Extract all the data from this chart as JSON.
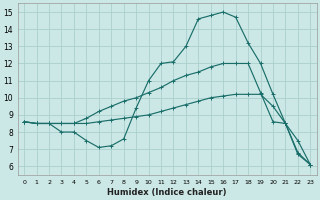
{
  "xlabel": "Humidex (Indice chaleur)",
  "bg_color": "#cce8e6",
  "grid_color": "#aacfcc",
  "line_color": "#1a6e6a",
  "xlim": [
    -0.5,
    23.5
  ],
  "ylim": [
    5.5,
    15.5
  ],
  "xticks": [
    0,
    1,
    2,
    3,
    4,
    5,
    6,
    7,
    8,
    9,
    10,
    11,
    12,
    13,
    14,
    15,
    16,
    17,
    18,
    19,
    20,
    21,
    22,
    23
  ],
  "yticks": [
    6,
    7,
    8,
    9,
    10,
    11,
    12,
    13,
    14,
    15
  ],
  "line1_x": [
    0,
    1,
    2,
    3,
    4,
    5,
    6,
    7,
    8,
    9,
    10,
    11,
    12,
    13,
    14,
    15,
    16,
    17,
    18,
    19,
    20,
    21,
    22,
    23
  ],
  "line1_y": [
    8.6,
    8.5,
    8.5,
    8.0,
    8.0,
    7.5,
    7.1,
    7.2,
    7.6,
    9.4,
    11.0,
    12.0,
    12.1,
    13.0,
    14.6,
    14.8,
    15.0,
    14.7,
    13.2,
    12.0,
    10.2,
    8.5,
    6.7,
    6.1
  ],
  "line2_x": [
    0,
    1,
    2,
    3,
    4,
    5,
    6,
    7,
    8,
    9,
    10,
    11,
    12,
    13,
    14,
    15,
    16,
    17,
    18,
    19,
    20,
    21,
    22,
    23
  ],
  "line2_y": [
    8.6,
    8.5,
    8.5,
    8.5,
    8.5,
    8.8,
    9.2,
    9.5,
    9.8,
    10.0,
    10.3,
    10.6,
    11.0,
    11.3,
    11.5,
    11.8,
    12.0,
    12.0,
    12.0,
    10.3,
    8.6,
    8.5,
    7.5,
    6.1
  ],
  "line3_x": [
    0,
    1,
    2,
    3,
    4,
    5,
    6,
    7,
    8,
    9,
    10,
    11,
    12,
    13,
    14,
    15,
    16,
    17,
    18,
    19,
    20,
    21,
    22,
    23
  ],
  "line3_y": [
    8.6,
    8.5,
    8.5,
    8.5,
    8.5,
    8.5,
    8.6,
    8.7,
    8.8,
    8.9,
    9.0,
    9.2,
    9.4,
    9.6,
    9.8,
    10.0,
    10.1,
    10.2,
    10.2,
    10.2,
    9.5,
    8.5,
    6.8,
    6.1
  ],
  "xlabel_fontsize": 6,
  "xlabel_bold": true,
  "xtick_fontsize": 4.5,
  "ytick_fontsize": 5.5,
  "linewidth": 0.85,
  "markersize": 2.2
}
